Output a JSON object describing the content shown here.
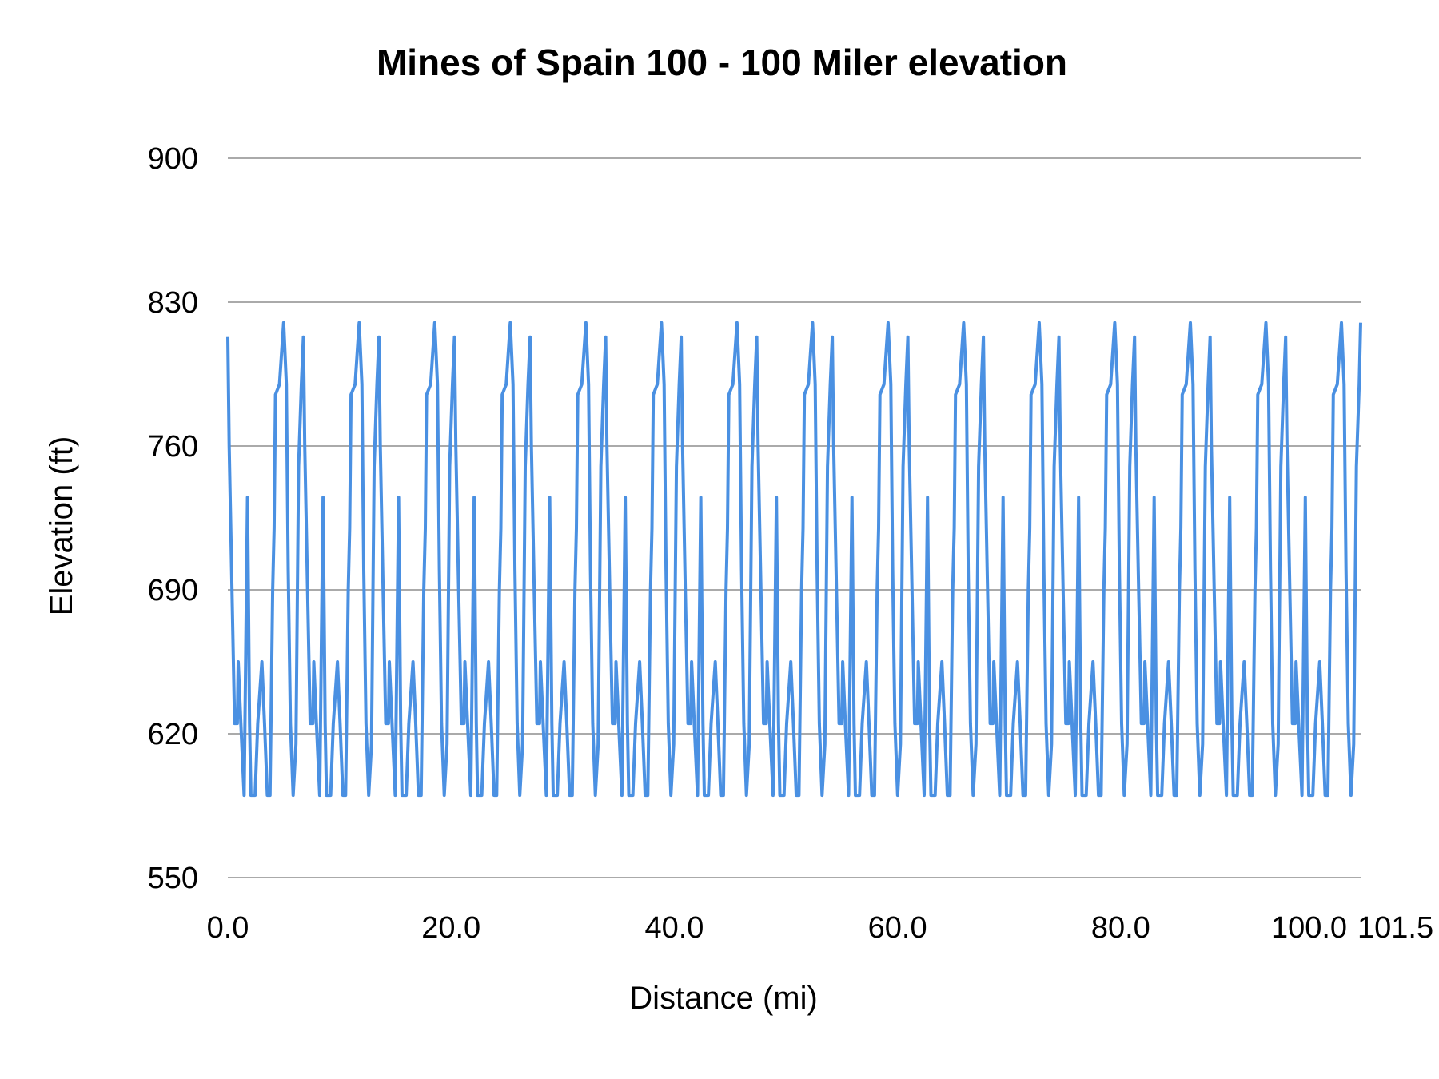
{
  "chart_data": {
    "type": "line",
    "title": "Mines of Spain 100 - 100 Miler elevation",
    "xlabel": "Distance (mi)",
    "ylabel": "Elevation (ft)",
    "xlim": [
      0,
      101.5
    ],
    "ylim": [
      550,
      900
    ],
    "grid": true,
    "legend": "none",
    "color": "#4a90e2",
    "y_ticks": [
      "550",
      "620",
      "690",
      "760",
      "830",
      "900"
    ],
    "x_ticks": [
      {
        "value": 0,
        "label": "0.0"
      },
      {
        "value": 20,
        "label": "20.0"
      },
      {
        "value": 40,
        "label": "40.0"
      },
      {
        "value": 60,
        "label": "60.0"
      },
      {
        "value": 80,
        "label": "80.0"
      },
      {
        "value": 100,
        "label": "100.0"
      },
      {
        "value": 101.5,
        "label": "101.5"
      }
    ],
    "series": [
      {
        "repeat_laps": 15,
        "lap_length_mi": 6.77,
        "lap_x": [
          0.0,
          0.12,
          0.37,
          0.61,
          0.85,
          0.93,
          1.17,
          1.46,
          1.76,
          1.95,
          2.07,
          2.44,
          2.68,
          3.05,
          3.29,
          3.54,
          3.78,
          4.02,
          4.15,
          4.27,
          4.63,
          5.0,
          5.24,
          5.41,
          5.61,
          5.85,
          6.1,
          6.34,
          6.59
        ],
        "lap_y": [
          813,
          760,
          690,
          625,
          625,
          655,
          625,
          590,
          735,
          625,
          590,
          590,
          625,
          655,
          625,
          590,
          590,
          690,
          720,
          785,
          790,
          820,
          790,
          700,
          625,
          590,
          615,
          750,
          790
        ]
      }
    ]
  }
}
